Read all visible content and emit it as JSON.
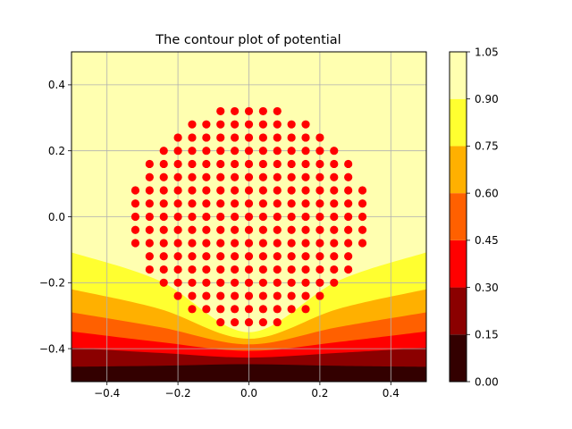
{
  "chart_data": {
    "type": "contour",
    "title": "The contour plot of potential",
    "xlabel": "",
    "ylabel": "",
    "xlim": [
      -0.5,
      0.5
    ],
    "ylim": [
      -0.5,
      0.5
    ],
    "xticks": [
      -0.4,
      -0.2,
      0.0,
      0.2,
      0.4
    ],
    "xtick_labels": [
      "−0.4",
      "−0.2",
      "0.0",
      "0.2",
      "0.4"
    ],
    "yticks": [
      -0.4,
      -0.2,
      0.0,
      0.2,
      0.4
    ],
    "ytick_labels": [
      "−0.4",
      "−0.2",
      "0.0",
      "0.2",
      "0.4"
    ],
    "grid": true,
    "colormap": "hot",
    "levels": [
      0.0,
      0.15,
      0.3,
      0.45,
      0.6,
      0.75,
      0.9,
      1.05
    ],
    "colorbar_labels": [
      "0.00",
      "0.15",
      "0.30",
      "0.45",
      "0.60",
      "0.75",
      "0.90",
      "1.05"
    ],
    "band_colors": [
      "#330000",
      "#8b0000",
      "#ff0000",
      "#ff6000",
      "#ffb000",
      "#ffff30",
      "#ffffb0"
    ],
    "contour_boundaries": [
      {
        "level": 0.15,
        "x": [
          -0.5,
          -0.25,
          0.0,
          0.25,
          0.5
        ],
        "y": [
          -0.455,
          -0.452,
          -0.447,
          -0.452,
          -0.455
        ]
      },
      {
        "level": 0.3,
        "x": [
          -0.5,
          -0.25,
          0.0,
          0.25,
          0.5
        ],
        "y": [
          -0.397,
          -0.413,
          -0.427,
          -0.413,
          -0.397
        ]
      },
      {
        "level": 0.45,
        "x": [
          -0.5,
          -0.25,
          0.0,
          0.25,
          0.5
        ],
        "y": [
          -0.348,
          -0.38,
          -0.407,
          -0.38,
          -0.348
        ]
      },
      {
        "level": 0.6,
        "x": [
          -0.5,
          -0.25,
          0.0,
          0.25,
          0.5
        ],
        "y": [
          -0.29,
          -0.335,
          -0.387,
          -0.335,
          -0.29
        ]
      },
      {
        "level": 0.75,
        "x": [
          -0.5,
          -0.25,
          0.0,
          0.25,
          0.5
        ],
        "y": [
          -0.22,
          -0.28,
          -0.37,
          -0.28,
          -0.22
        ]
      },
      {
        "level": 0.9,
        "x": [
          -0.5,
          -0.25,
          0.0,
          0.25,
          0.5
        ],
        "y": [
          -0.108,
          -0.195,
          -0.35,
          -0.195,
          -0.108
        ]
      }
    ],
    "scatter": {
      "color": "#ff0000",
      "rows": [
        {
          "y": 0.32,
          "x": [
            -0.08,
            -0.04,
            0.0,
            0.04,
            0.08
          ]
        },
        {
          "y": 0.28,
          "x": [
            -0.16,
            -0.12,
            -0.08,
            -0.04,
            0.0,
            0.04,
            0.08,
            0.12,
            0.16
          ]
        },
        {
          "y": 0.24,
          "x": [
            -0.2,
            -0.16,
            -0.12,
            -0.08,
            -0.04,
            0.0,
            0.04,
            0.08,
            0.12,
            0.16,
            0.2
          ]
        },
        {
          "y": 0.2,
          "x": [
            -0.24,
            -0.2,
            -0.16,
            -0.12,
            -0.08,
            -0.04,
            0.0,
            0.04,
            0.08,
            0.12,
            0.16,
            0.2,
            0.24
          ]
        },
        {
          "y": 0.16,
          "x": [
            -0.28,
            -0.24,
            -0.2,
            -0.16,
            -0.12,
            -0.08,
            -0.04,
            0.0,
            0.04,
            0.08,
            0.12,
            0.16,
            0.2,
            0.24,
            0.28
          ]
        },
        {
          "y": 0.12,
          "x": [
            -0.28,
            -0.24,
            -0.2,
            -0.16,
            -0.12,
            -0.08,
            -0.04,
            0.0,
            0.04,
            0.08,
            0.12,
            0.16,
            0.2,
            0.24,
            0.28
          ]
        },
        {
          "y": 0.08,
          "x": [
            -0.32,
            -0.28,
            -0.24,
            -0.2,
            -0.16,
            -0.12,
            -0.08,
            -0.04,
            0.0,
            0.04,
            0.08,
            0.12,
            0.16,
            0.2,
            0.24,
            0.28,
            0.32
          ]
        },
        {
          "y": 0.04,
          "x": [
            -0.32,
            -0.28,
            -0.24,
            -0.2,
            -0.16,
            -0.12,
            -0.08,
            -0.04,
            0.0,
            0.04,
            0.08,
            0.12,
            0.16,
            0.2,
            0.24,
            0.28,
            0.32
          ]
        },
        {
          "y": 0.0,
          "x": [
            -0.32,
            -0.28,
            -0.24,
            -0.2,
            -0.16,
            -0.12,
            -0.08,
            -0.04,
            0.0,
            0.04,
            0.08,
            0.12,
            0.16,
            0.2,
            0.24,
            0.28,
            0.32
          ]
        },
        {
          "y": -0.04,
          "x": [
            -0.32,
            -0.28,
            -0.24,
            -0.2,
            -0.16,
            -0.12,
            -0.08,
            -0.04,
            0.0,
            0.04,
            0.08,
            0.12,
            0.16,
            0.2,
            0.24,
            0.28,
            0.32
          ]
        },
        {
          "y": -0.08,
          "x": [
            -0.32,
            -0.28,
            -0.24,
            -0.2,
            -0.16,
            -0.12,
            -0.08,
            -0.04,
            0.0,
            0.04,
            0.08,
            0.12,
            0.16,
            0.2,
            0.24,
            0.28,
            0.32
          ]
        },
        {
          "y": -0.12,
          "x": [
            -0.28,
            -0.24,
            -0.2,
            -0.16,
            -0.12,
            -0.08,
            -0.04,
            0.0,
            0.04,
            0.08,
            0.12,
            0.16,
            0.2,
            0.24,
            0.28
          ]
        },
        {
          "y": -0.16,
          "x": [
            -0.28,
            -0.24,
            -0.2,
            -0.16,
            -0.12,
            -0.08,
            -0.04,
            0.0,
            0.04,
            0.08,
            0.12,
            0.16,
            0.2,
            0.24,
            0.28
          ]
        },
        {
          "y": -0.2,
          "x": [
            -0.24,
            -0.2,
            -0.16,
            -0.12,
            -0.08,
            -0.04,
            0.0,
            0.04,
            0.08,
            0.12,
            0.16,
            0.2,
            0.24
          ]
        },
        {
          "y": -0.24,
          "x": [
            -0.2,
            -0.16,
            -0.12,
            -0.08,
            -0.04,
            0.0,
            0.04,
            0.08,
            0.12,
            0.16,
            0.2
          ]
        },
        {
          "y": -0.28,
          "x": [
            -0.16,
            -0.12,
            -0.08,
            -0.04,
            0.0,
            0.04,
            0.08,
            0.12,
            0.16
          ]
        },
        {
          "y": -0.32,
          "x": [
            -0.08,
            -0.04,
            0.0,
            0.04,
            0.08
          ]
        }
      ]
    }
  }
}
